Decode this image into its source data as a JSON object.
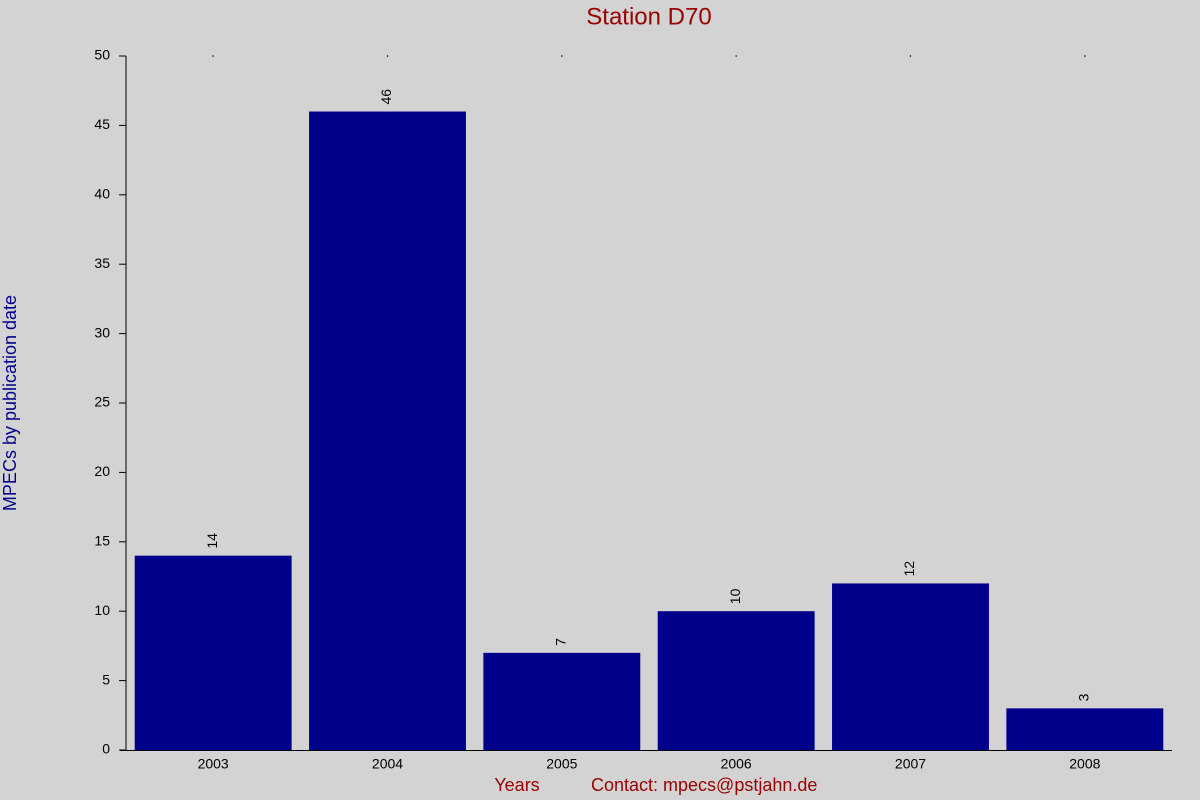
{
  "chart_data": {
    "type": "bar",
    "title": "Station D70",
    "y_label": "MPECs by publication date",
    "x_label": "Years",
    "note": "Contact: mpecs@pstjahn.de",
    "categories": [
      "2003",
      "2004",
      "2005",
      "2006",
      "2007",
      "2008"
    ],
    "values": [
      14,
      46,
      7,
      10,
      12,
      3
    ],
    "color": "#00008b",
    "ylim": [
      0,
      50
    ],
    "yticks": [
      0,
      5,
      10,
      15,
      20,
      25,
      30,
      35,
      40,
      45,
      50
    ],
    "grid": false
  }
}
